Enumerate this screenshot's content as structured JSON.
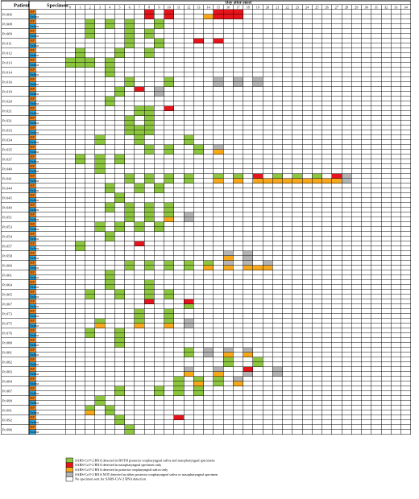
{
  "header": {
    "patient": "Patient",
    "specimen": "Specimen",
    "day_after_onset": "Day after onset"
  },
  "days": [
    "0",
    "1",
    "2",
    "3",
    "4",
    "5",
    "6",
    "7",
    "8",
    "9",
    "10",
    "11",
    "12",
    "13",
    "14",
    "15",
    "16",
    "17",
    "18",
    "19",
    "20",
    "21",
    "22",
    "23",
    "24",
    "25",
    "26",
    "27",
    "28",
    "29",
    "30",
    "31",
    "32",
    "33",
    "34"
  ],
  "specimen_labels": {
    "np": "NP",
    "saliva": "Saliva"
  },
  "colors": {
    "both": "#8dc63f",
    "np_only": "#e8141c",
    "saliva_only": "#f7a81b",
    "neither": "#b4b4b4",
    "none": "#ffffff",
    "np_label_bg": "#f08a24",
    "saliva_label_bg": "#2aa7df",
    "grid": "#000000"
  },
  "patients": [
    {
      "id": "Pt 006",
      "np": {
        "8": "R",
        "10": "R",
        "15": "R",
        "16": "R",
        "17": "R"
      },
      "sal": {
        "8": "R",
        "10": "R",
        "14": "O",
        "15": "R",
        "16": "R",
        "17": "R"
      }
    },
    {
      "id": "Pt 008",
      "np": {
        "2": "G",
        "4": "G",
        "6": "G",
        "9": "G"
      },
      "sal": {
        "2": "G",
        "4": "G",
        "6": "G",
        "9": "G"
      }
    },
    {
      "id": "Pt 009",
      "np": {
        "2": "G",
        "6": "G",
        "8": "G"
      },
      "sal": {
        "2": "G",
        "6": "G",
        "8": "G"
      }
    },
    {
      "id": "Pt 011",
      "np": {
        "6": "G",
        "9": "G",
        "13": "R",
        "15": "R"
      },
      "sal": {
        "6": "G",
        "9": "G"
      }
    },
    {
      "id": "Pt 012",
      "np": {
        "1": "G",
        "5": "G",
        "8": "G"
      },
      "sal": {
        "1": "G",
        "5": "G",
        "8": "G"
      }
    },
    {
      "id": "Pt 013",
      "np": {
        "0": "G",
        "1": "G",
        "2": "G",
        "4": "G"
      },
      "sal": {
        "0": "G",
        "1": "G",
        "2": "G",
        "4": "G"
      }
    },
    {
      "id": "Pt 014",
      "np": {
        "4": "G"
      },
      "sal": {
        "4": "G"
      }
    },
    {
      "id": "Pt 016",
      "np": {
        "6": "G",
        "10": "G",
        "15": "N",
        "17": "N",
        "19": "N"
      },
      "sal": {
        "6": "G",
        "10": "G",
        "15": "N",
        "17": "N",
        "19": "N"
      }
    },
    {
      "id": "Pt 019",
      "np": {
        "5": "G",
        "7": "R",
        "9": "N"
      },
      "sal": {
        "5": "G",
        "9": "N"
      }
    },
    {
      "id": "Pt 020",
      "np": {
        "4": "G"
      },
      "sal": {
        "4": "G"
      }
    },
    {
      "id": "Pt 021",
      "np": {
        "7": "G",
        "8": "G",
        "10": "R"
      },
      "sal": {
        "7": "G",
        "8": "G"
      }
    },
    {
      "id": "Pt 031",
      "np": {
        "6": "G",
        "8": "G"
      },
      "sal": {
        "6": "G",
        "8": "G"
      }
    },
    {
      "id": "Pt 033",
      "np": {
        "6": "G",
        "7": "G",
        "8": "G"
      },
      "sal": {
        "6": "G",
        "7": "G",
        "8": "G"
      }
    },
    {
      "id": "Pt 034",
      "np": {
        "3": "G",
        "7": "G",
        "12": "G"
      },
      "sal": {
        "3": "G",
        "7": "G",
        "12": "G"
      }
    },
    {
      "id": "Pt 035",
      "np": {
        "8": "G",
        "10": "G",
        "13": "G",
        "15": "N"
      },
      "sal": {
        "8": "G",
        "10": "G",
        "13": "G",
        "15": "O"
      }
    },
    {
      "id": "Pt 037",
      "np": {
        "1": "G",
        "3": "G",
        "5": "G"
      },
      "sal": {
        "1": "G",
        "3": "G",
        "5": "G"
      }
    },
    {
      "id": "Pt 040",
      "np": {
        "3": "G"
      },
      "sal": {
        "3": "G"
      }
    },
    {
      "id": "Pt 041",
      "np": {
        "6": "G",
        "8": "G",
        "10": "G",
        "12": "G",
        "15": "G",
        "17": "G",
        "19": "R",
        "21": "G",
        "23": "G",
        "25": "G",
        "27": "R",
        "28": "N"
      },
      "sal": {
        "6": "G",
        "8": "G",
        "10": "G",
        "12": "G",
        "15": "O",
        "17": "O",
        "19": "O",
        "20": "O",
        "21": "O",
        "22": "O",
        "23": "O",
        "24": "O",
        "25": "O",
        "26": "O",
        "27": "O",
        "28": "N"
      }
    },
    {
      "id": "Pt 044",
      "np": {
        "4": "G",
        "7": "G",
        "9": "G"
      },
      "sal": {
        "4": "G",
        "7": "G",
        "9": "G"
      }
    },
    {
      "id": "Pt 045",
      "np": {
        "5": "G"
      },
      "sal": {
        "5": "G"
      }
    },
    {
      "id": "Pt 049",
      "np": {
        "4": "G",
        "6": "G",
        "8": "G",
        "10": "G"
      },
      "sal": {
        "4": "G",
        "6": "G",
        "8": "G",
        "10": "G"
      }
    },
    {
      "id": "Pt 051",
      "np": {
        "6": "G",
        "8": "G",
        "10": "G",
        "12": "N"
      },
      "sal": {
        "6": "G",
        "8": "G",
        "10": "O",
        "12": "N"
      }
    },
    {
      "id": "Pt 053",
      "np": {
        "3": "G",
        "5": "G",
        "7": "G",
        "9": "G"
      },
      "sal": {
        "3": "G",
        "5": "G",
        "7": "G",
        "9": "G"
      }
    },
    {
      "id": "Pt 054",
      "np": {
        "4": "G"
      },
      "sal": {
        "4": "G"
      }
    },
    {
      "id": "Pt 057",
      "np": {
        "1": "G",
        "7": "R"
      },
      "sal": {
        "1": "G"
      }
    },
    {
      "id": "Pt 058",
      "np": {
        "16": "N",
        "18": "N"
      },
      "sal": {
        "16": "O",
        "18": "N"
      }
    },
    {
      "id": "Pt 060",
      "np": {
        "6": "G",
        "8": "G",
        "10": "G",
        "12": "G",
        "14": "G",
        "16": "N",
        "18": "N",
        "20": "N"
      },
      "sal": {
        "6": "G",
        "8": "G",
        "10": "G",
        "12": "G",
        "14": "O",
        "16": "O",
        "18": "O",
        "19": "O",
        "20": "O"
      }
    },
    {
      "id": "Pt 061",
      "np": {
        "4": "G"
      },
      "sal": {
        "4": "G"
      }
    },
    {
      "id": "Pt 064",
      "np": {
        "4": "G",
        "8": "G"
      },
      "sal": {
        "4": "G",
        "8": "G"
      }
    },
    {
      "id": "Pt 065",
      "np": {
        "2": "G",
        "5": "G",
        "8": "G",
        "10": "G"
      },
      "sal": {
        "2": "G",
        "5": "G",
        "8": "G",
        "10": "G"
      }
    },
    {
      "id": "Pt 067",
      "np": {
        "8": "R",
        "12": "R"
      },
      "sal": {
        "12": "G"
      }
    },
    {
      "id": "Pt 073",
      "np": {
        "7": "G",
        "10": "G"
      },
      "sal": {
        "7": "G",
        "10": "G"
      }
    },
    {
      "id": "Pt 075",
      "np": {
        "3": "G",
        "7": "G",
        "10": "G",
        "12": "N"
      },
      "sal": {
        "3": "O",
        "7": "O",
        "10": "O",
        "12": "N"
      }
    },
    {
      "id": "Pt 076",
      "np": {
        "2": "G",
        "5": "G"
      },
      "sal": {
        "2": "G",
        "5": "G"
      }
    },
    {
      "id": "Pt 080",
      "np": {
        "5": "G"
      },
      "sal": {
        "5": "G"
      }
    },
    {
      "id": "Pt 081",
      "np": {
        "12": "G",
        "14": "N",
        "16": "N",
        "18": "N"
      },
      "sal": {
        "12": "G",
        "14": "N",
        "16": "O",
        "18": "O"
      }
    },
    {
      "id": "Pt 082",
      "np": {
        "16": "G",
        "19": "G"
      },
      "sal": {
        "16": "G",
        "19": "G"
      }
    },
    {
      "id": "Pt 083",
      "np": {
        "12": "N",
        "15": "N",
        "18": "R",
        "21": "N"
      },
      "sal": {
        "12": "O",
        "15": "O",
        "18": "N",
        "21": "N"
      }
    },
    {
      "id": "Pt 084",
      "np": {
        "11": "G",
        "13": "G",
        "15": "G",
        "17": "N"
      },
      "sal": {
        "11": "G",
        "13": "O",
        "15": "G",
        "17": "O"
      }
    },
    {
      "id": "Pt 087",
      "np": {
        "5": "G",
        "9": "G",
        "11": "G",
        "13": "G"
      },
      "sal": {
        "5": "G",
        "9": "G",
        "11": "G",
        "13": "G"
      }
    },
    {
      "id": "Pt 090",
      "np": {
        "3": "G"
      },
      "sal": {
        "3": "G"
      }
    },
    {
      "id": "Pt 091",
      "np": {
        "2": "G",
        "4": "G"
      },
      "sal": {
        "2": "O",
        "4": "G"
      }
    },
    {
      "id": "Pt 092",
      "np": {
        "5": "G",
        "11": "R"
      },
      "sal": {
        "5": "G"
      }
    },
    {
      "id": "Pt 096",
      "np": {
        "6": "G"
      },
      "sal": {
        "6": "G"
      }
    }
  ],
  "legend": [
    {
      "code": "G",
      "text": "SARS-CoV-2 RNA detected in BOTH posterior oropharyngeal saliva and nasopharyngeal specimens"
    },
    {
      "code": "R",
      "text": "SARS-CoV-2 RNA detected in nasopharyngeal specimen only"
    },
    {
      "code": "O",
      "text": "SARS-CoV-2 RNA detected in posterior oropharyngeal saliva only"
    },
    {
      "code": "N",
      "text": "SARS-CoV-2 RNA NOT detected in either posterior oropharyngeal saliva or nasopharyngeal specimen"
    },
    {
      "code": "W",
      "text": "No specimen sent for SARS-CoV-2 RNA detection"
    }
  ]
}
